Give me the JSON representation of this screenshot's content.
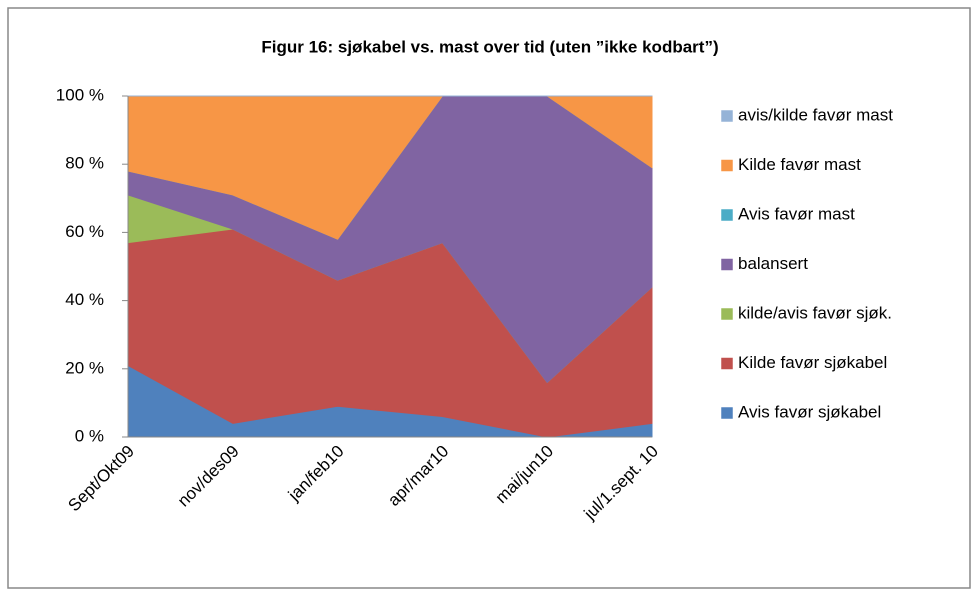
{
  "chart_data": {
    "type": "area",
    "stacked": true,
    "title": "Figur 16: sjøkabel vs. mast over tid (uten ”ikke kodbart”)",
    "categories": [
      "Sept/Okt09",
      "nov/des09",
      "jan/feb10",
      "apr/mar10",
      "mai/jun10",
      "jul/1.sept. 10"
    ],
    "series": [
      {
        "name": "Avis favør sjøkabel",
        "color": "#4f81bd",
        "values": [
          21,
          4,
          9,
          6,
          0,
          4
        ]
      },
      {
        "name": "Kilde favør sjøkabel",
        "color": "#c0504d",
        "values": [
          36,
          57,
          37,
          51,
          16,
          40
        ]
      },
      {
        "name": "kilde/avis favør sjøk.",
        "color": "#9bbb59",
        "values": [
          14,
          0,
          0,
          0,
          0,
          0
        ]
      },
      {
        "name": "balansert",
        "color": "#8064a2",
        "values": [
          7,
          10,
          12,
          43,
          84,
          35
        ]
      },
      {
        "name": "Avis favør mast",
        "color": "#4bacc6",
        "values": [
          0,
          0,
          0,
          0,
          0,
          0
        ]
      },
      {
        "name": "Kilde favør mast",
        "color": "#f79646",
        "values": [
          22,
          29,
          42,
          0,
          0,
          21
        ]
      },
      {
        "name": "avis/kilde favør mast",
        "color": "#95b3d7",
        "values": [
          0,
          0,
          0,
          0,
          0,
          0
        ]
      }
    ],
    "ylim": [
      0,
      100
    ],
    "yticks": [
      {
        "value": 0,
        "label": "0 %"
      },
      {
        "value": 20,
        "label": "20 %"
      },
      {
        "value": 40,
        "label": "40 %"
      },
      {
        "value": 60,
        "label": "60 %"
      },
      {
        "value": 80,
        "label": "80 %"
      },
      {
        "value": 100,
        "label": "100 %"
      }
    ],
    "legend": "right"
  }
}
